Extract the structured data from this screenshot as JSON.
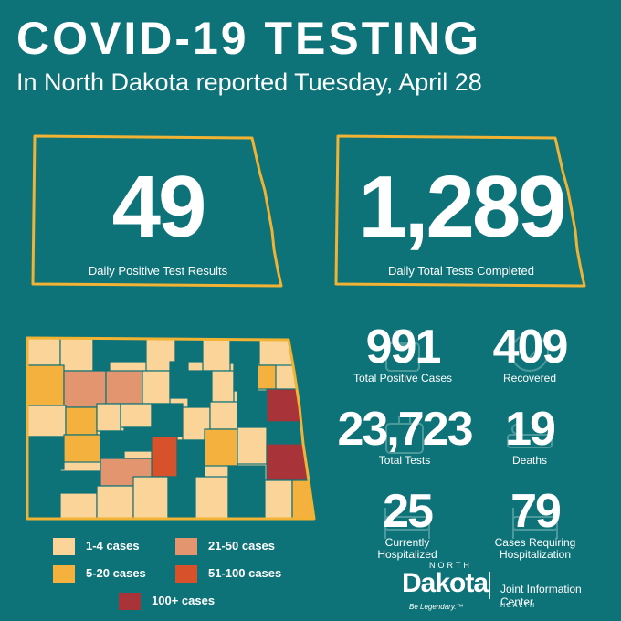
{
  "header": {
    "title": "COVID-19 TESTING",
    "subtitle": "In North Dakota reported Tuesday, April 28"
  },
  "daily": {
    "positive": {
      "value": "49",
      "label": "Daily Positive Test Results"
    },
    "total": {
      "value": "1,289",
      "label": "Daily Total Tests Completed"
    }
  },
  "stats": {
    "total_positive": {
      "value": "991",
      "label": "Total Positive Cases"
    },
    "recovered": {
      "value": "409",
      "label": "Recovered"
    },
    "total_tests": {
      "value": "23,723",
      "label": "Total Tests"
    },
    "deaths": {
      "value": "19",
      "label": "Deaths"
    },
    "hospitalized": {
      "value": "25",
      "line1": "Currently",
      "line2": "Hospitalized"
    },
    "cases_hosp": {
      "value": "79",
      "line1": "Cases Requiring",
      "line2": "Hospitalization"
    }
  },
  "legend": [
    {
      "label": "1-4 cases",
      "color": "#fbd49a"
    },
    {
      "label": "21-50 cases",
      "color": "#e2956f"
    },
    {
      "label": "5-20 cases",
      "color": "#f5b13d"
    },
    {
      "label": "51-100 cases",
      "color": "#d7522a"
    },
    {
      "label": "100+ cases",
      "color": "#a8343a"
    }
  ],
  "colors": {
    "background": "#0e7378",
    "outline": "#f2b233",
    "no_cases": "#0e7378"
  },
  "logo": {
    "north": "NORTH",
    "dakota": "Dakota",
    "legendary": "Be Legendary.™",
    "org": "Joint Information Center",
    "health": "HEALTH"
  }
}
